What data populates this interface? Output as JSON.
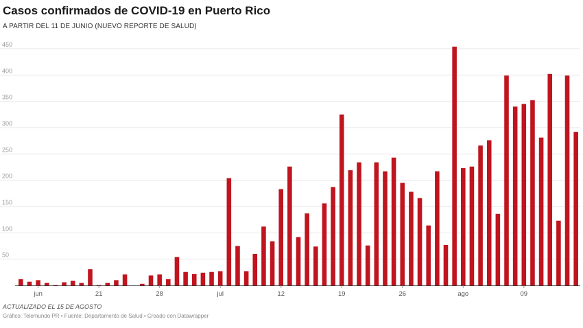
{
  "header": {
    "title": "Casos confirmados de COVID-19 en Puerto Rico",
    "subtitle": "A PARTIR DEL 11 DE JUNIO (NUEVO REPORTE DE SALUD)"
  },
  "footer": {
    "updated": "ACTUALIZADO EL 15 DE AGOSTO",
    "source": "Gráfico: Telemundo PR • Fuente: Departamento de Salud • Creado con Datawrapper"
  },
  "colors": {
    "bar": "#c0141e",
    "grid": "#e6e6e6",
    "baseline": "#333333"
  },
  "chart_data": {
    "type": "bar",
    "title": "Casos confirmados de COVID-19 en Puerto Rico",
    "subtitle": "A PARTIR DEL 11 DE JUNIO (NUEVO REPORTE DE SALUD)",
    "xlabel": "",
    "ylabel": "",
    "ylim": [
      0,
      450
    ],
    "yticks": [
      50,
      100,
      150,
      200,
      250,
      300,
      350,
      400,
      450
    ],
    "xtick_labels": [
      {
        "label": "jun",
        "index": 2
      },
      {
        "label": "21",
        "index": 9
      },
      {
        "label": "28",
        "index": 16
      },
      {
        "label": "jul",
        "index": 23
      },
      {
        "label": "12",
        "index": 30
      },
      {
        "label": "19",
        "index": 37
      },
      {
        "label": "26",
        "index": 44
      },
      {
        "label": "ago",
        "index": 51
      },
      {
        "label": "09",
        "index": 58
      }
    ],
    "grid": true,
    "values": [
      12,
      7,
      10,
      5,
      1,
      6,
      9,
      5,
      31,
      1,
      5,
      10,
      21,
      0,
      3,
      19,
      21,
      12,
      54,
      26,
      22,
      24,
      26,
      27,
      204,
      75,
      27,
      60,
      112,
      84,
      183,
      226,
      92,
      137,
      74,
      156,
      187,
      325,
      219,
      234,
      76,
      234,
      217,
      243,
      195,
      178,
      166,
      114,
      217,
      77,
      454,
      223,
      226,
      266,
      276,
      136,
      399,
      340,
      345,
      352,
      281,
      402,
      123,
      399,
      292
    ]
  }
}
